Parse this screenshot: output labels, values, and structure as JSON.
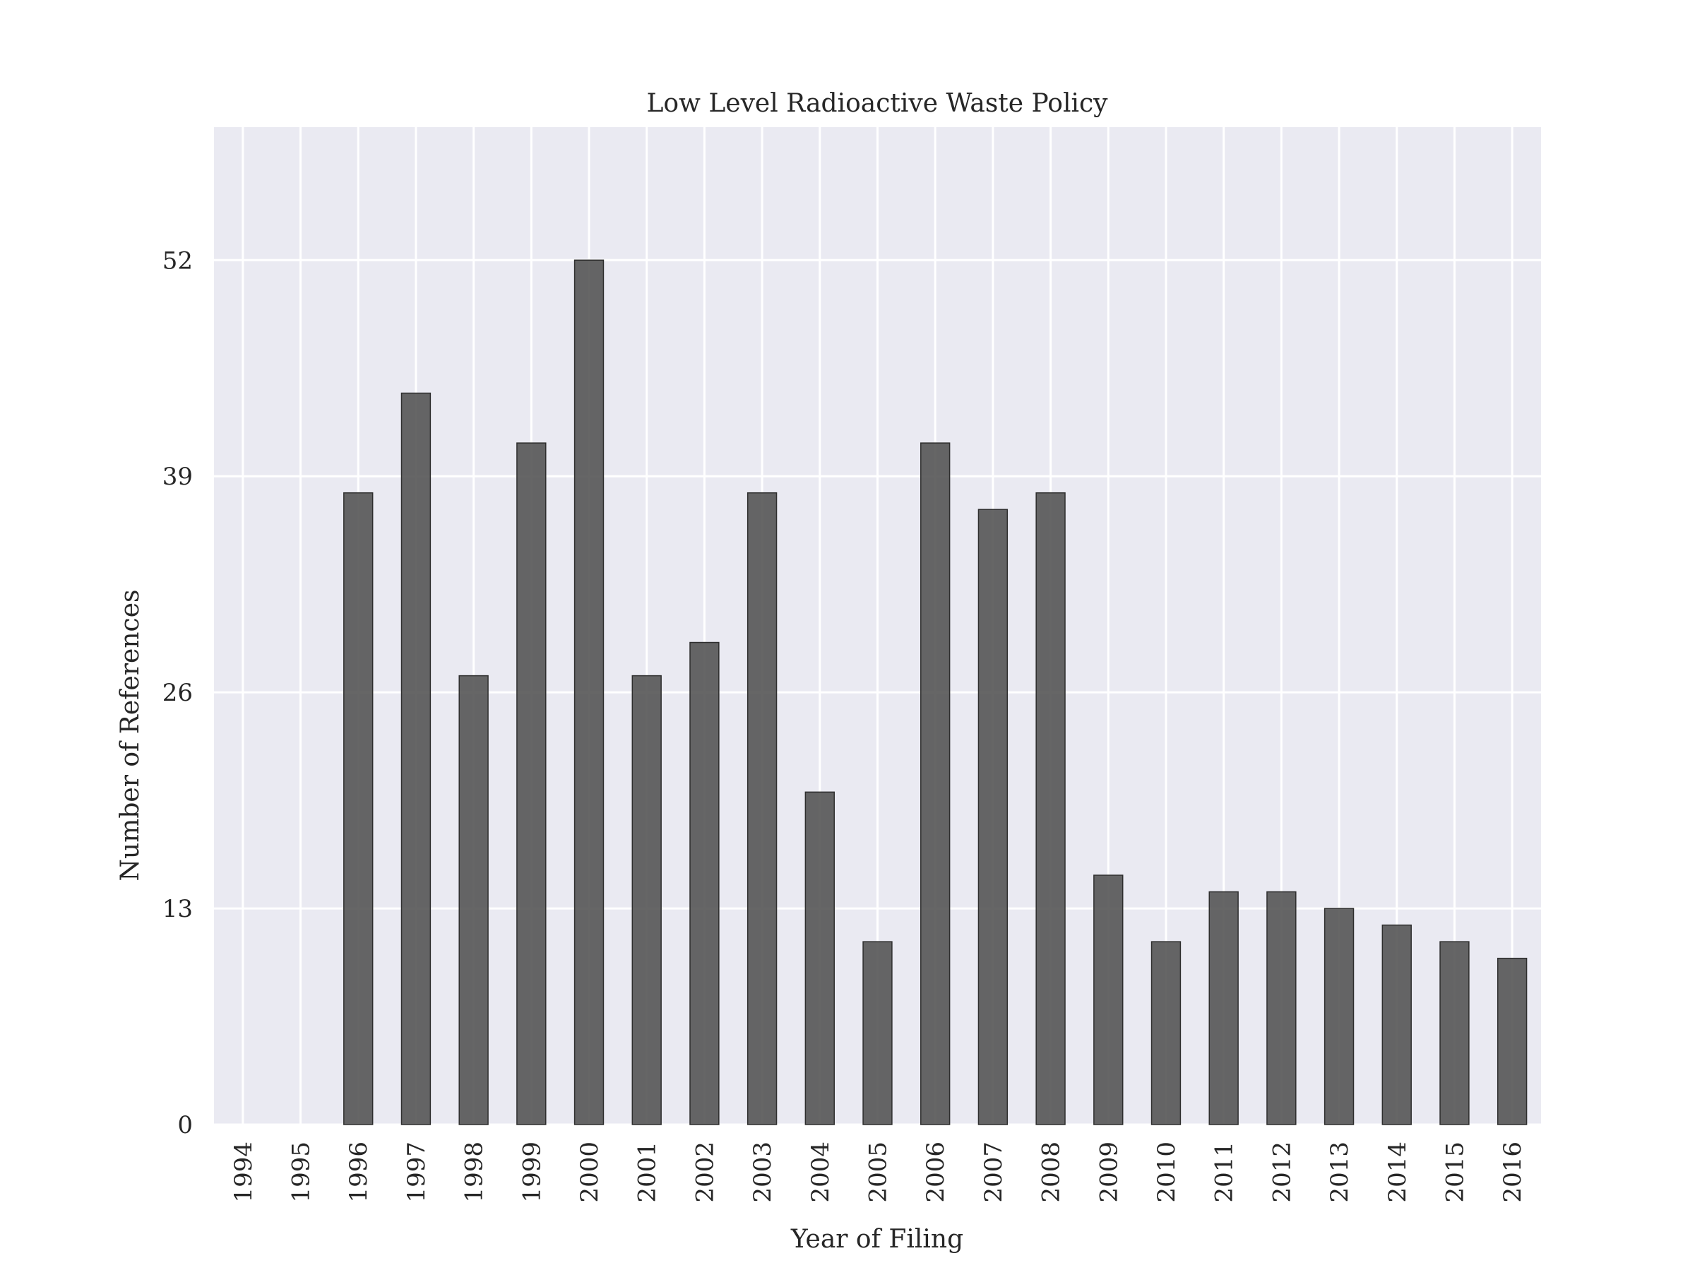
{
  "chart_data": {
    "type": "bar",
    "title": "Low Level Radioactive Waste Policy",
    "xlabel": "Year of Filing",
    "ylabel": "Number of References",
    "categories": [
      "1994",
      "1995",
      "1996",
      "1997",
      "1998",
      "1999",
      "2000",
      "2001",
      "2002",
      "2003",
      "2004",
      "2005",
      "2006",
      "2007",
      "2008",
      "2009",
      "2010",
      "2011",
      "2012",
      "2013",
      "2014",
      "2015",
      "2016"
    ],
    "values": [
      0,
      0,
      38,
      44,
      27,
      41,
      52,
      27,
      29,
      38,
      20,
      11,
      41,
      37,
      38,
      15,
      11,
      14,
      14,
      13,
      12,
      11,
      10
    ],
    "yticks": [
      "0",
      "13",
      "26",
      "39",
      "52"
    ],
    "ylim": [
      0,
      60
    ],
    "grid": true,
    "colors": {
      "bar": "#555555",
      "bar_edge": "#2e2e2e",
      "plot_background": "#eaeaf2",
      "grid": "#ffffff"
    }
  }
}
